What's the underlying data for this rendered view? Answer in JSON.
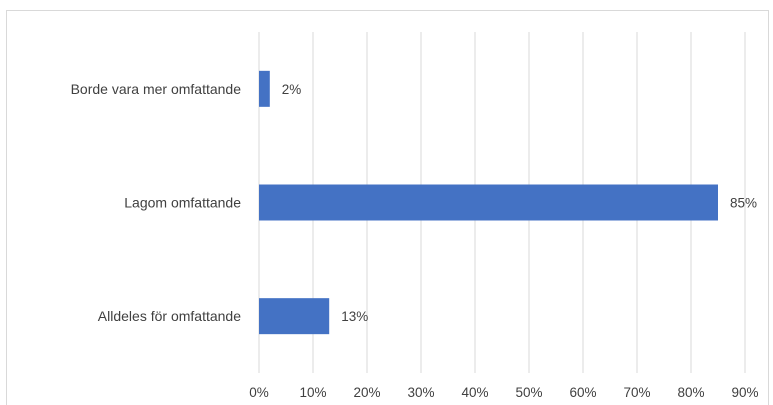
{
  "chart_data": {
    "type": "bar",
    "orientation": "horizontal",
    "categories": [
      "Borde vara mer omfattande",
      "Lagom omfattande",
      "Alldeles för omfattande"
    ],
    "values": [
      2,
      85,
      13
    ],
    "data_labels": [
      "2%",
      "85%",
      "13%"
    ],
    "x_ticks": [
      "0%",
      "10%",
      "20%",
      "30%",
      "40%",
      "50%",
      "60%",
      "70%",
      "80%",
      "90%"
    ],
    "xlim": [
      0,
      90
    ],
    "grid": true,
    "legend": "none",
    "bar_color": "#4472C4",
    "gridline_color": "#D9D9D9"
  }
}
